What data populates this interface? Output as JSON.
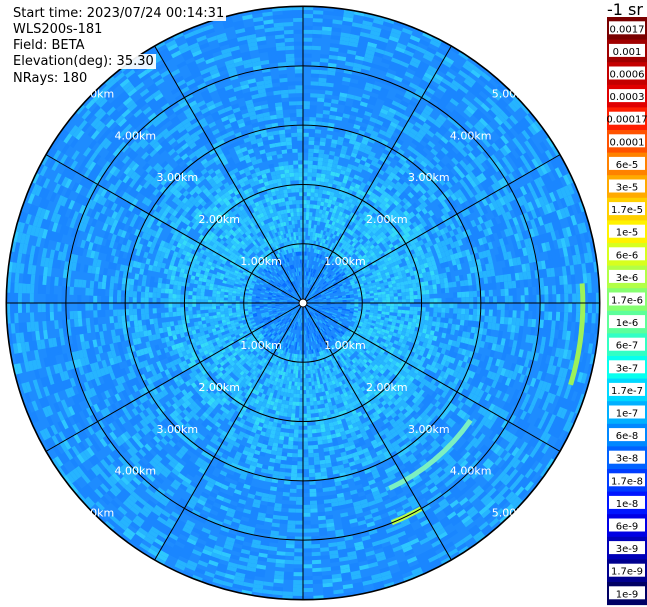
{
  "header": {
    "start_time": "Start time: 2023/07/24 00:14:31",
    "instrument": "WLS200s-181",
    "field": "Field: BETA",
    "elevation": "Elevation(deg): 35.30",
    "nrays": "NRays: 180"
  },
  "chart_data": {
    "type": "heatmap",
    "projection": "polar-ppi",
    "field": "BETA",
    "range_rings_km": [
      1.0,
      2.0,
      3.0,
      4.0,
      5.0
    ],
    "ring_labels": [
      "1.00km",
      "2.00km",
      "3.00km",
      "4.00km",
      "5.00km"
    ],
    "max_range_km": 5.0,
    "radials_deg": [
      0,
      30,
      60,
      90,
      120,
      150,
      180,
      210,
      240,
      270,
      300,
      330
    ],
    "n_rays": 180,
    "colorbar": {
      "title": "-1 sr",
      "ticks": [
        "0.0017",
        "0.001",
        "0.0006",
        "0.0003",
        "0.00017",
        "0.0001",
        "6e-5",
        "3e-5",
        "1.7e-5",
        "1e-5",
        "6e-6",
        "3e-6",
        "1.7e-6",
        "1e-6",
        "6e-7",
        "3e-7",
        "1.7e-7",
        "1e-7",
        "6e-8",
        "3e-8",
        "1.7e-8",
        "1e-8",
        "6e-9",
        "3e-9",
        "1.7e-9",
        "1e-9"
      ],
      "colors": [
        "#7a0000",
        "#a00000",
        "#c40000",
        "#e00000",
        "#ff1e00",
        "#ff5200",
        "#ff8200",
        "#ffaa00",
        "#ffd000",
        "#fff200",
        "#d8ff1e",
        "#b2ff46",
        "#86ff70",
        "#5cff9a",
        "#32ffc4",
        "#08ffee",
        "#00d8ff",
        "#00b0ff",
        "#0088ff",
        "#0062ff",
        "#003cff",
        "#0016ff",
        "#0000e4",
        "#0000b8",
        "#00008e",
        "#000064"
      ]
    }
  }
}
